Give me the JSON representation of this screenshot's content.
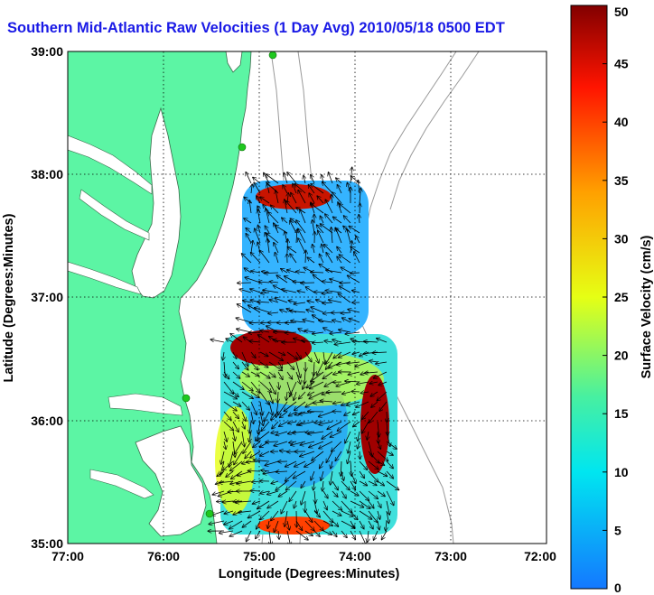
{
  "title": "Southern Mid-Atlantic Raw Velocities (1 Day Avg) 2010/05/18 0500 EDT",
  "map": {
    "xlabel": "Longitude (Degrees:Minutes)",
    "ylabel": "Latitude (Degrees:Minutes)",
    "x_ticks": [
      "77:00",
      "76:00",
      "75:00",
      "74:00",
      "73:00",
      "72:00"
    ],
    "y_ticks": [
      "39:00",
      "38:00",
      "37:00",
      "36:00",
      "35:00"
    ],
    "colors": {
      "land": "#5cf5a4",
      "water": "#ffffff",
      "coast": "#3a6b4b",
      "bathymetry": "#999999",
      "station": "#1ec81e",
      "vector": "#000000"
    },
    "grid": "dotted"
  },
  "colorbar": {
    "label": "Surface Velocity (cm/s)",
    "ticks": [
      "0",
      "5",
      "10",
      "15",
      "20",
      "25",
      "30",
      "35",
      "40",
      "45",
      "50"
    ],
    "range": [
      0,
      50
    ],
    "colors": [
      "#1478ff",
      "#00e6f0",
      "#48f0a0",
      "#e6ff14",
      "#ffa000",
      "#ff1400",
      "#820000"
    ]
  }
}
